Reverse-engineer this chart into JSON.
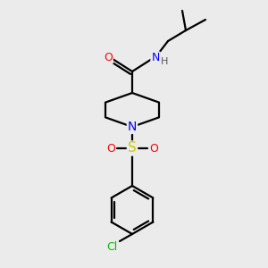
{
  "bg_color": "#ebebeb",
  "bond_color": "#000000",
  "atom_colors": {
    "O": "#ff0000",
    "N": "#0000ff",
    "S": "#cccc00",
    "Cl": "#00bb00",
    "H": "#555555"
  },
  "figsize": [
    3.0,
    3.0
  ],
  "dpi": 100
}
